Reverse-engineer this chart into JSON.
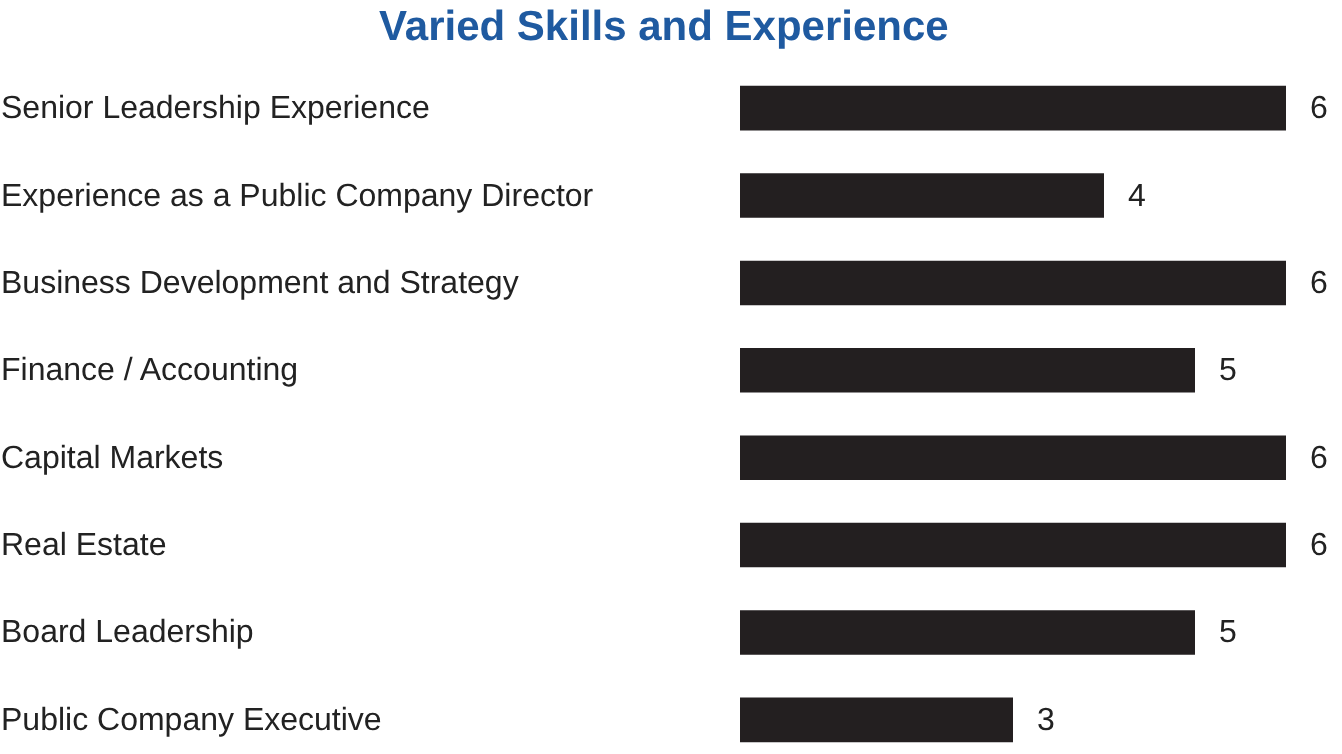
{
  "chart_data": {
    "type": "bar",
    "orientation": "horizontal",
    "title": "Varied Skills and Experience",
    "categories": [
      "Senior Leadership Experience",
      "Experience as a Public Company Director",
      "Business Development and Strategy",
      "Finance / Accounting",
      "Capital Markets",
      "Real Estate",
      "Board Leadership",
      "Public Company Executive"
    ],
    "values": [
      6,
      4,
      6,
      5,
      6,
      6,
      5,
      3
    ],
    "color": "#231f20",
    "data_labels": true
  }
}
